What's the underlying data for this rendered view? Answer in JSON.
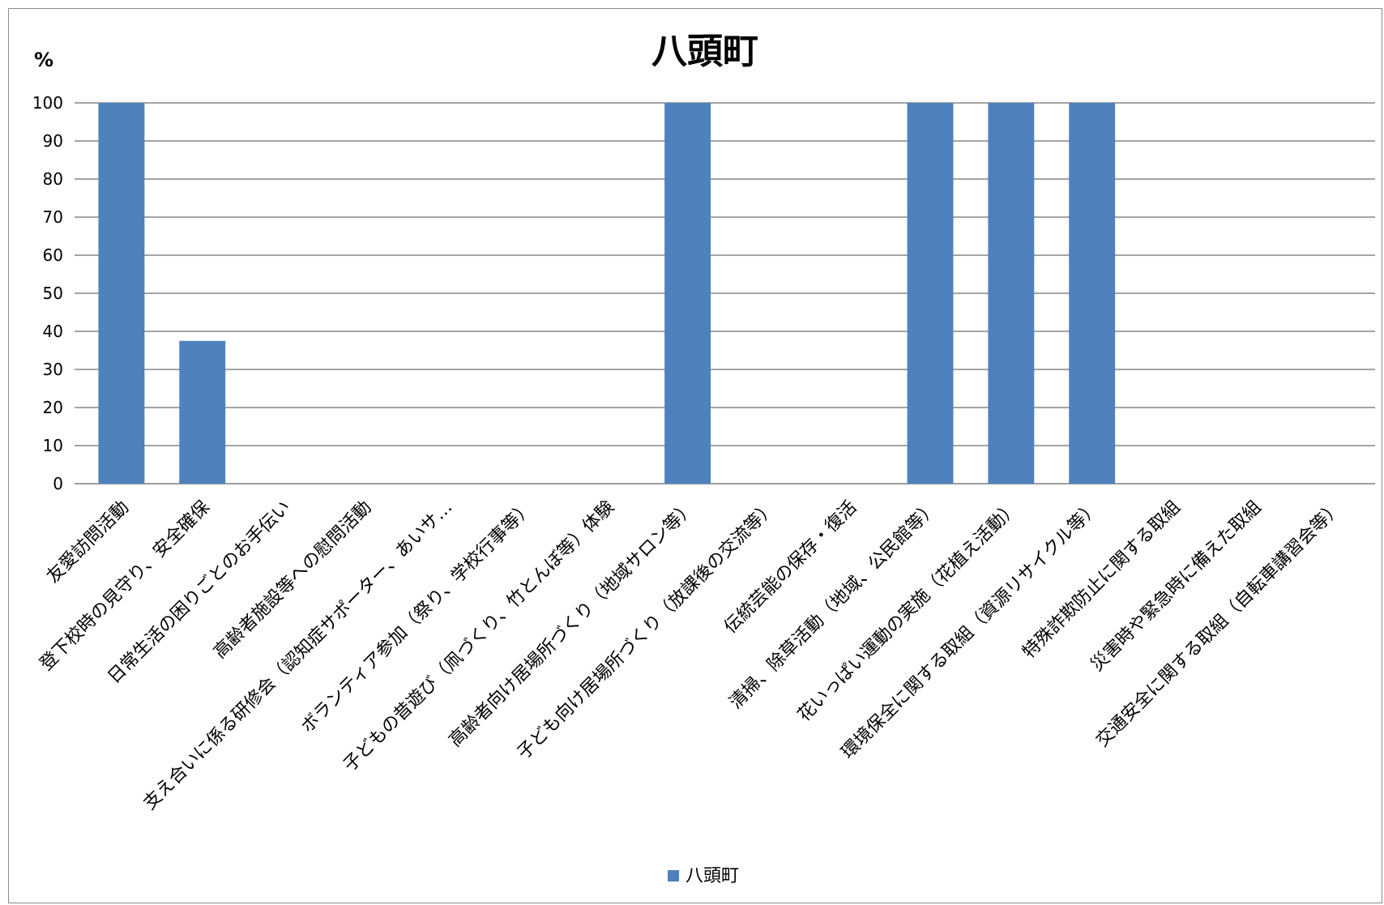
{
  "chart_data": {
    "type": "bar",
    "title": "八頭町",
    "ylabel": "%",
    "xlabel": "",
    "ylim": [
      0,
      100
    ],
    "yticks": [
      0,
      10,
      20,
      30,
      40,
      50,
      60,
      70,
      80,
      90,
      100
    ],
    "grid": true,
    "legend_position": "bottom",
    "bar_color": "#4f81bd",
    "categories": [
      "友愛訪問活動",
      "登下校時の見守り、安全確保",
      "日常生活の困りごとのお手伝い",
      "高齢者施設等への慰問活動",
      "支え合いに係る研修会（認知症サポーター、あいサ…",
      "ボランティア参加（祭り、学校行事等）",
      "子どもの昔遊び（凧づくり、竹とんぼ等）体験",
      "高齢者向け居場所づくり（地域サロン等）",
      "子ども向け居場所づくり（放課後の交流等）",
      "伝統芸能の保存・復活",
      "清掃、除草活動（地域、公民館等）",
      "花いっぱい運動の実施（花植え活動）",
      "環境保全に関する取組（資源リサイクル等）",
      "特殊詐欺防止に関する取組",
      "災害時や緊急時に備えた取組",
      "交通安全に関する取組（自転車講習会等）"
    ],
    "series": [
      {
        "name": "八頭町",
        "values": [
          100,
          37.5,
          0,
          0,
          0,
          0,
          0,
          100,
          0,
          0,
          100,
          100,
          100,
          0,
          0,
          0
        ]
      }
    ]
  }
}
